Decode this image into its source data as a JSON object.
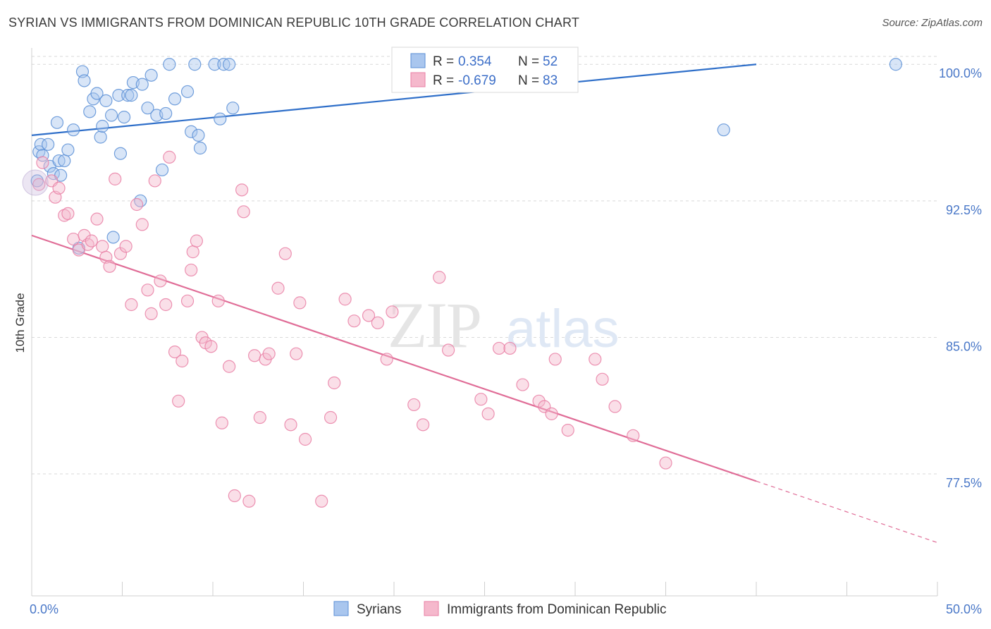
{
  "title": "SYRIAN VS IMMIGRANTS FROM DOMINICAN REPUBLIC 10TH GRADE CORRELATION CHART",
  "source": "Source: ZipAtlas.com",
  "watermark": {
    "zip": "ZIP",
    "atlas": "atlas"
  },
  "colors": {
    "blue": "#5b8fd6",
    "blue_fill": "#a9c6ee",
    "blue_line": "#2f6fc9",
    "pink": "#e97fa5",
    "pink_fill": "#f5b8cc",
    "pink_line": "#e06d97",
    "grid": "#d9d9d9",
    "tick_label": "#4a78c8"
  },
  "legend": {
    "rows": [
      {
        "r_label": "R = ",
        "r_value": "0.354",
        "n_label": "N = ",
        "n_value": "52",
        "series": "blue"
      },
      {
        "r_label": "R = ",
        "r_value": "-0.679",
        "n_label": "N = ",
        "n_value": "83",
        "series": "pink"
      }
    ]
  },
  "chart_data": {
    "type": "scatter",
    "xlabel": "",
    "ylabel": "10th Grade",
    "xlim": [
      0,
      50
    ],
    "ylim": [
      70.8,
      100.9
    ],
    "x_tick_labels": [
      "0.0%",
      "50.0%"
    ],
    "y_ticks": [
      100.0,
      92.5,
      85.0,
      77.5
    ],
    "y_tick_labels": [
      "100.0%",
      "92.5%",
      "85.0%",
      "77.5%"
    ],
    "grid": true,
    "legend_position": "top-center",
    "series": [
      {
        "name": "Syrians",
        "color": "blue",
        "trend": {
          "x0": 0,
          "y0": 96.1,
          "x1": 40,
          "y1": 100.0,
          "dashed_to": 40
        },
        "points": [
          [
            0.3,
            93.6
          ],
          [
            0.4,
            95.2
          ],
          [
            0.5,
            95.6
          ],
          [
            0.9,
            95.6
          ],
          [
            0.6,
            95.0
          ],
          [
            1.0,
            94.4
          ],
          [
            1.2,
            94.0
          ],
          [
            1.5,
            94.7
          ],
          [
            1.4,
            96.8
          ],
          [
            1.8,
            94.7
          ],
          [
            1.6,
            93.9
          ],
          [
            2.0,
            95.3
          ],
          [
            2.3,
            96.4
          ],
          [
            2.8,
            99.6
          ],
          [
            2.9,
            99.1
          ],
          [
            3.2,
            97.4
          ],
          [
            3.4,
            98.1
          ],
          [
            3.6,
            98.4
          ],
          [
            3.8,
            96.0
          ],
          [
            3.9,
            96.6
          ],
          [
            4.1,
            98.0
          ],
          [
            4.4,
            97.2
          ],
          [
            4.8,
            98.3
          ],
          [
            4.9,
            95.1
          ],
          [
            5.1,
            97.1
          ],
          [
            5.3,
            98.3
          ],
          [
            5.5,
            98.3
          ],
          [
            5.6,
            99.0
          ],
          [
            6.1,
            98.9
          ],
          [
            6.4,
            97.6
          ],
          [
            6.6,
            99.4
          ],
          [
            6.9,
            97.2
          ],
          [
            7.2,
            94.2
          ],
          [
            7.4,
            97.3
          ],
          [
            7.6,
            100.0
          ],
          [
            7.9,
            98.1
          ],
          [
            8.6,
            98.5
          ],
          [
            8.8,
            96.3
          ],
          [
            9.2,
            96.1
          ],
          [
            9.3,
            95.4
          ],
          [
            9.0,
            100.0
          ],
          [
            10.1,
            100.0
          ],
          [
            10.6,
            100.0
          ],
          [
            10.9,
            100.0
          ],
          [
            10.4,
            97.0
          ],
          [
            11.1,
            97.6
          ],
          [
            6.0,
            92.5
          ],
          [
            4.5,
            90.5
          ],
          [
            2.6,
            89.9
          ],
          [
            28.0,
            100.0
          ],
          [
            38.2,
            96.4
          ],
          [
            47.7,
            100.0
          ]
        ]
      },
      {
        "name": "Immigrants from Dominican Republic",
        "color": "pink",
        "trend": {
          "x0": 0,
          "y0": 90.6,
          "x1": 40,
          "y1": 77.1,
          "dashed_to": 50
        },
        "points": [
          [
            0.4,
            93.4
          ],
          [
            0.6,
            94.6
          ],
          [
            1.1,
            93.6
          ],
          [
            1.3,
            92.7
          ],
          [
            1.5,
            93.2
          ],
          [
            1.8,
            91.7
          ],
          [
            2.0,
            91.8
          ],
          [
            2.3,
            90.4
          ],
          [
            2.6,
            89.8
          ],
          [
            2.9,
            90.6
          ],
          [
            3.1,
            90.1
          ],
          [
            3.3,
            90.3
          ],
          [
            3.6,
            91.5
          ],
          [
            3.9,
            90.0
          ],
          [
            4.1,
            89.4
          ],
          [
            4.3,
            88.9
          ],
          [
            4.6,
            93.7
          ],
          [
            4.9,
            89.6
          ],
          [
            5.2,
            90.0
          ],
          [
            5.5,
            86.8
          ],
          [
            5.8,
            92.3
          ],
          [
            6.1,
            91.2
          ],
          [
            6.4,
            87.6
          ],
          [
            6.6,
            86.3
          ],
          [
            6.8,
            93.6
          ],
          [
            7.1,
            88.1
          ],
          [
            7.4,
            86.8
          ],
          [
            7.6,
            94.9
          ],
          [
            7.9,
            84.2
          ],
          [
            8.1,
            81.5
          ],
          [
            8.3,
            83.7
          ],
          [
            8.6,
            87.0
          ],
          [
            8.8,
            88.7
          ],
          [
            8.9,
            89.7
          ],
          [
            9.1,
            90.3
          ],
          [
            9.4,
            85.0
          ],
          [
            9.6,
            84.7
          ],
          [
            9.9,
            84.5
          ],
          [
            10.3,
            87.0
          ],
          [
            10.5,
            80.3
          ],
          [
            10.9,
            83.4
          ],
          [
            11.2,
            76.3
          ],
          [
            11.6,
            93.1
          ],
          [
            11.7,
            91.9
          ],
          [
            12.0,
            76.0
          ],
          [
            12.3,
            84.0
          ],
          [
            12.6,
            80.6
          ],
          [
            12.9,
            83.8
          ],
          [
            13.1,
            84.1
          ],
          [
            13.6,
            87.7
          ],
          [
            14.0,
            89.6
          ],
          [
            14.3,
            80.2
          ],
          [
            14.6,
            84.1
          ],
          [
            14.8,
            86.9
          ],
          [
            15.1,
            79.4
          ],
          [
            16.0,
            76.0
          ],
          [
            16.5,
            80.6
          ],
          [
            16.7,
            82.5
          ],
          [
            17.3,
            87.1
          ],
          [
            17.8,
            85.9
          ],
          [
            18.6,
            86.2
          ],
          [
            19.1,
            85.8
          ],
          [
            19.9,
            86.4
          ],
          [
            19.6,
            83.8
          ],
          [
            21.1,
            81.3
          ],
          [
            21.6,
            80.2
          ],
          [
            22.5,
            88.3
          ],
          [
            23.0,
            84.3
          ],
          [
            24.8,
            81.6
          ],
          [
            25.2,
            80.8
          ],
          [
            25.8,
            84.4
          ],
          [
            27.1,
            82.4
          ],
          [
            28.0,
            81.5
          ],
          [
            28.3,
            81.2
          ],
          [
            28.7,
            80.8
          ],
          [
            28.9,
            83.8
          ],
          [
            29.6,
            79.9
          ],
          [
            31.1,
            83.8
          ],
          [
            31.5,
            82.7
          ],
          [
            32.2,
            81.2
          ],
          [
            33.2,
            79.6
          ],
          [
            35.0,
            78.1
          ],
          [
            26.4,
            84.4
          ]
        ]
      }
    ]
  },
  "bottom_legend": [
    {
      "label": "Syrians",
      "series": "blue"
    },
    {
      "label": "Immigrants from Dominican Republic",
      "series": "pink"
    }
  ]
}
